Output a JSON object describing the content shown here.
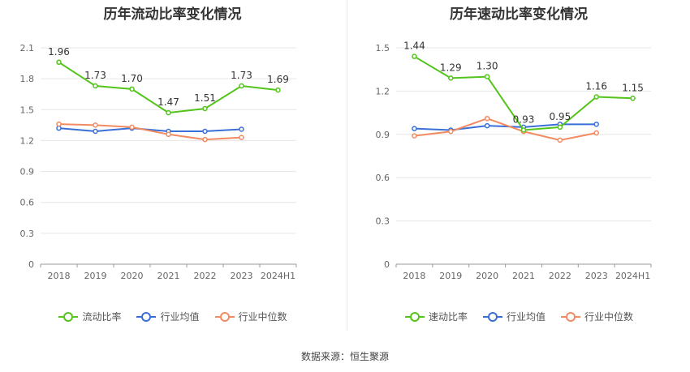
{
  "source_label": "数据来源：恒生聚源",
  "colors": {
    "primary": "#52c41a",
    "industry_avg": "#3a6fd8",
    "industry_median": "#f28b62",
    "grid": "#e6e6e6",
    "axis": "#999999"
  },
  "chart_data": [
    {
      "type": "line",
      "title": "历年流动比率变化情况",
      "categories": [
        "2018",
        "2019",
        "2020",
        "2021",
        "2022",
        "2023",
        "2024H1"
      ],
      "yticks": [
        "0",
        "0.3",
        "0.6",
        "0.9",
        "1.2",
        "1.5",
        "1.8",
        "2.1"
      ],
      "ylim": [
        0,
        2.1
      ],
      "grid": true,
      "legend_position": "bottom",
      "series": [
        {
          "name": "流动比率",
          "key": "primary",
          "values": [
            1.96,
            1.73,
            1.7,
            1.47,
            1.51,
            1.73,
            1.69
          ],
          "labels": [
            "1.96",
            "1.73",
            "1.70",
            "1.47",
            "1.51",
            "1.73",
            "1.69"
          ]
        },
        {
          "name": "行业均值",
          "key": "industry_avg",
          "values": [
            1.32,
            1.29,
            1.32,
            1.29,
            1.29,
            1.31,
            null
          ]
        },
        {
          "name": "行业中位数",
          "key": "industry_median",
          "values": [
            1.36,
            1.35,
            1.33,
            1.26,
            1.21,
            1.23,
            null
          ]
        }
      ]
    },
    {
      "type": "line",
      "title": "历年速动比率变化情况",
      "categories": [
        "2018",
        "2019",
        "2020",
        "2021",
        "2022",
        "2023",
        "2024H1"
      ],
      "yticks": [
        "0",
        "0.3",
        "0.6",
        "0.9",
        "1.2",
        "1.5"
      ],
      "ylim": [
        0,
        1.5
      ],
      "grid": true,
      "legend_position": "bottom",
      "series": [
        {
          "name": "速动比率",
          "key": "primary",
          "values": [
            1.44,
            1.29,
            1.3,
            0.93,
            0.95,
            1.16,
            1.15
          ],
          "labels": [
            "1.44",
            "1.29",
            "1.30",
            "0.93",
            "0.95",
            "1.16",
            "1.15"
          ]
        },
        {
          "name": "行业均值",
          "key": "industry_avg",
          "values": [
            0.94,
            0.93,
            0.96,
            0.95,
            0.97,
            0.97,
            null
          ]
        },
        {
          "name": "行业中位数",
          "key": "industry_median",
          "values": [
            0.89,
            0.92,
            1.01,
            0.92,
            0.86,
            0.91,
            null
          ]
        }
      ]
    }
  ]
}
